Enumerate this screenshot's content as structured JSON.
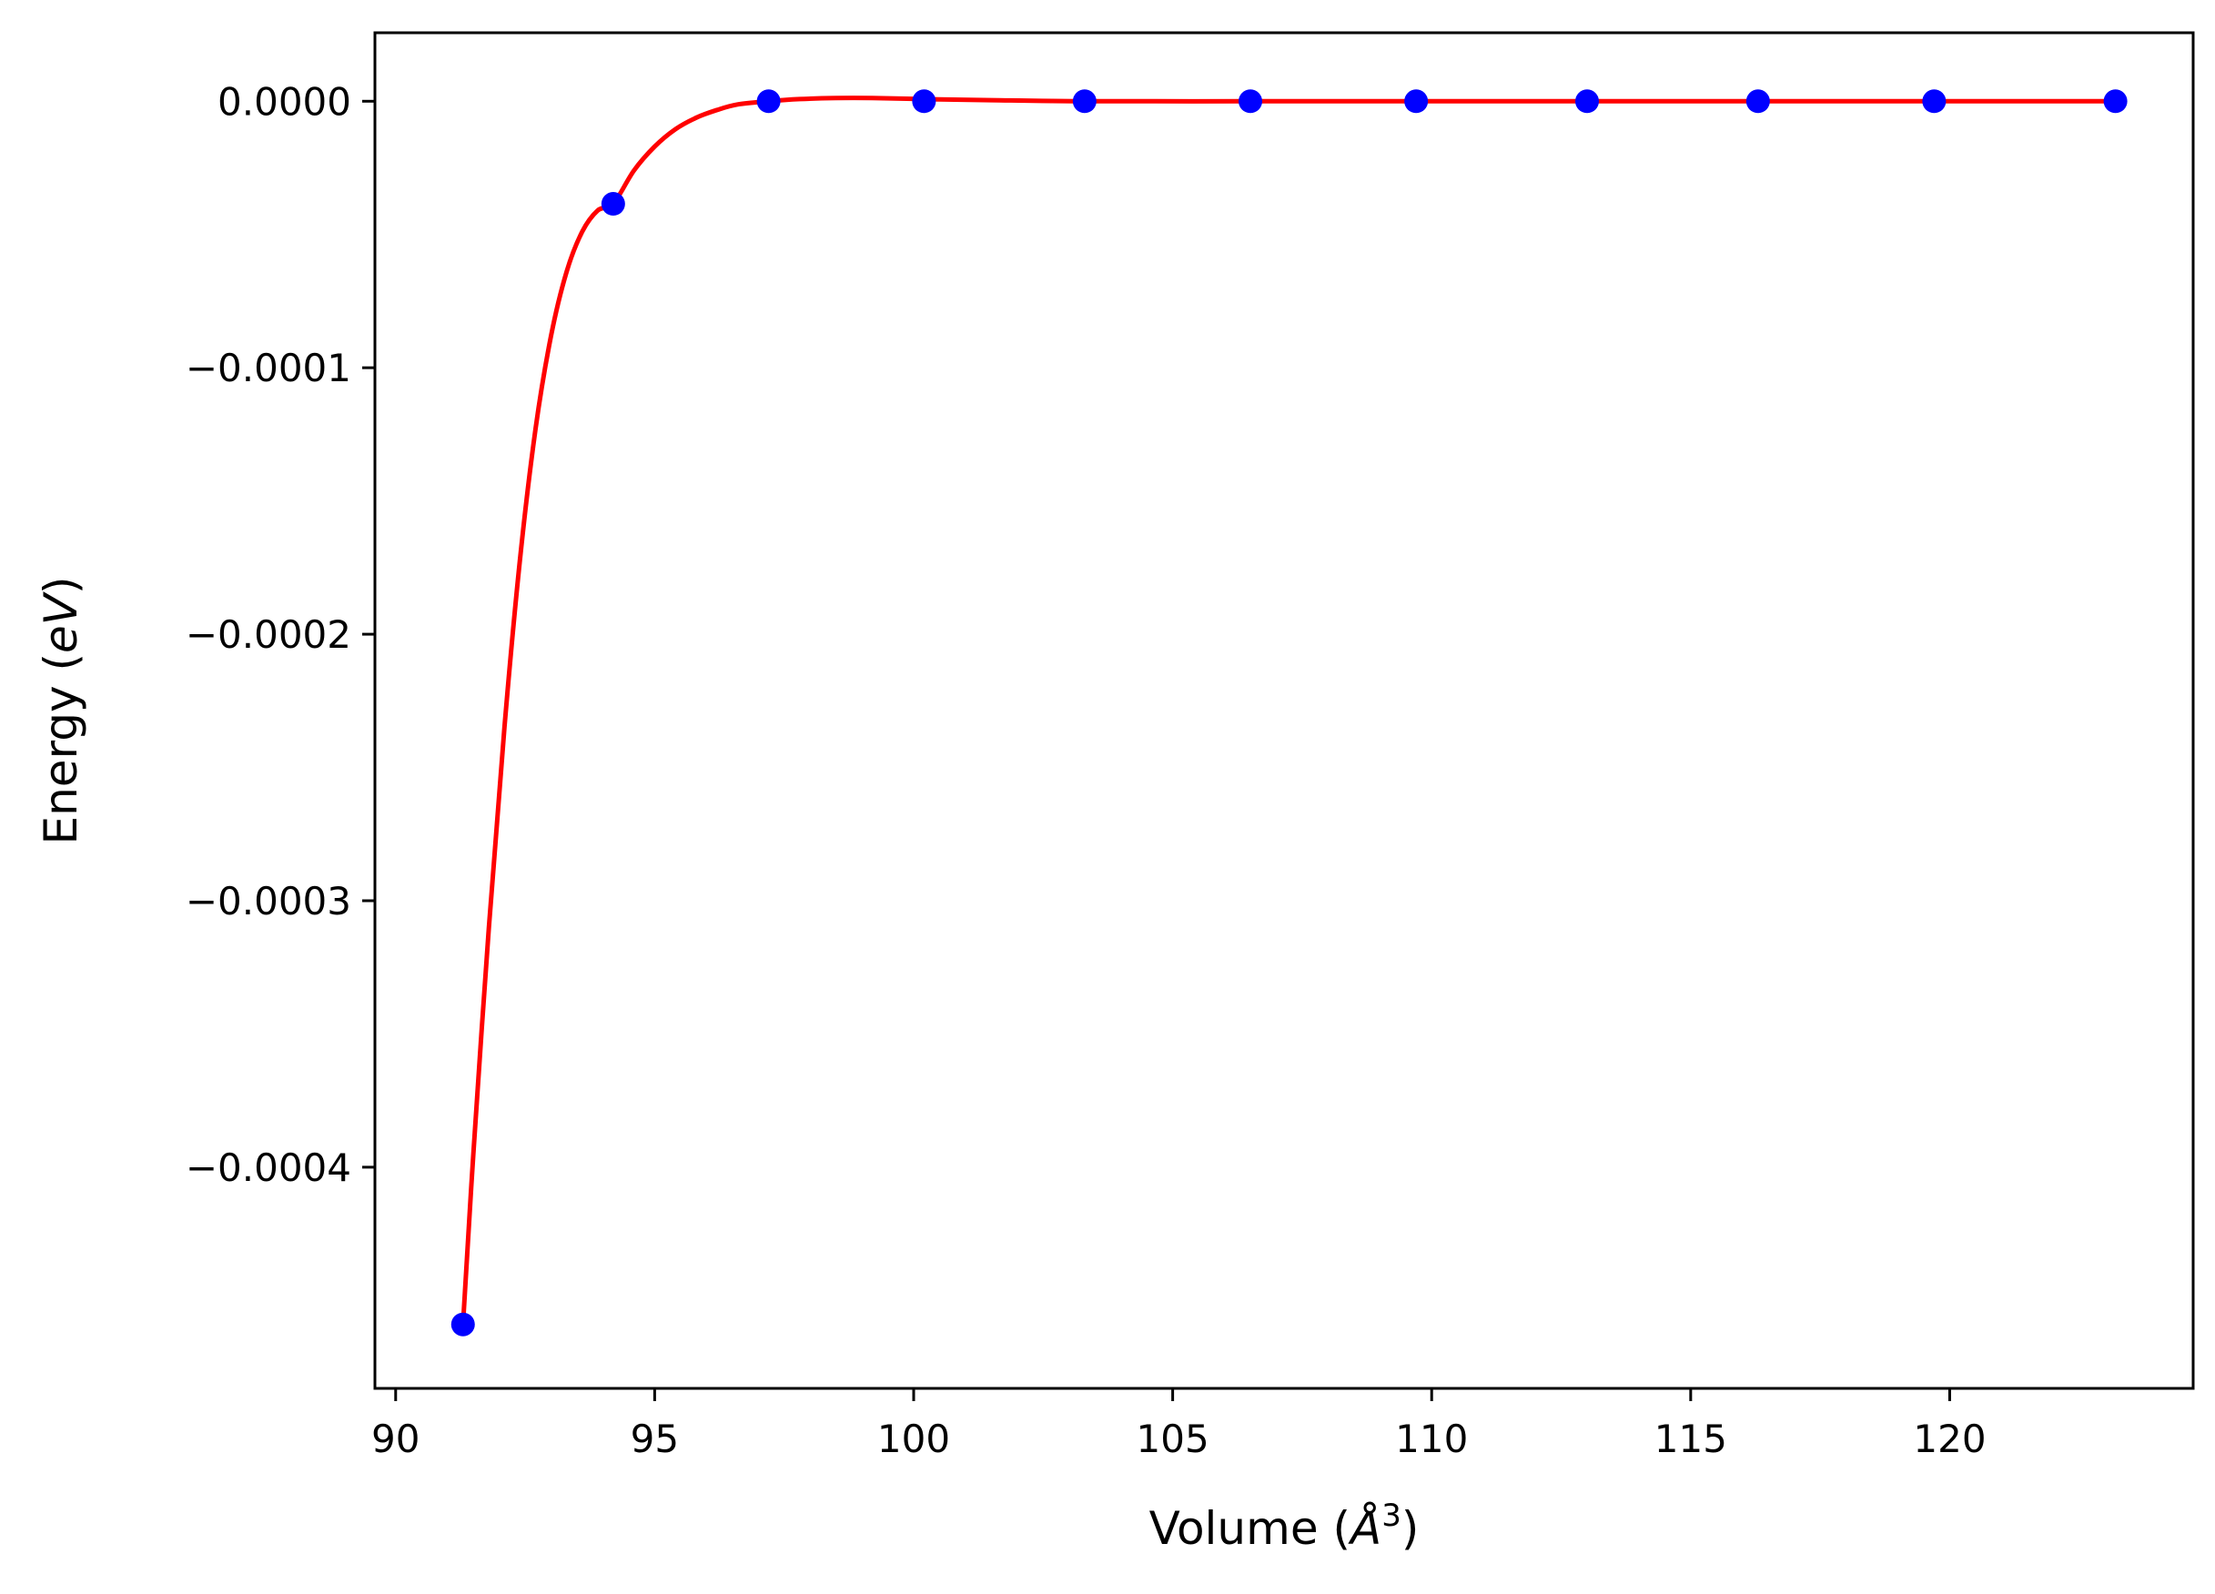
{
  "chart_data": {
    "type": "line",
    "title": "",
    "xlabel": "Volume ($\\AA^3$)",
    "ylabel": "Energy ($eV$)",
    "x_label_parts": {
      "prefix": "Volume (",
      "symbol": "Å",
      "superscript": "3",
      "suffix": ")"
    },
    "y_label_parts": {
      "prefix": "Energy (",
      "symbol": "eV",
      "suffix": ")"
    },
    "xlim": [
      89.6,
      124.7
    ],
    "ylim": [
      -0.000483,
      2.57e-05
    ],
    "x_ticks": [
      90,
      95,
      100,
      105,
      110,
      115,
      120
    ],
    "x_tick_labels": [
      "90",
      "95",
      "100",
      "105",
      "110",
      "115",
      "120"
    ],
    "y_ticks": [
      0.0,
      -0.0001,
      -0.0002,
      -0.0003,
      -0.0004
    ],
    "y_tick_labels": [
      "0.0000",
      "−0.0001",
      "−0.0002",
      "−0.0003",
      "−0.0004"
    ],
    "grid": false,
    "legend": "none",
    "series": [
      {
        "kind": "points",
        "color": "#0000ff",
        "x": [
          91.3,
          94.2,
          97.2,
          100.2,
          103.3,
          106.5,
          109.7,
          113.0,
          116.3,
          119.7,
          123.2
        ],
        "y": [
          -0.000459,
          -3.85e-05,
          0.0,
          0.0,
          0.0,
          0.0,
          0.0,
          0.0,
          0.0,
          0.0,
          0.0
        ]
      },
      {
        "kind": "fit-curve",
        "color": "#ff0000",
        "x": [
          91.3,
          91.5,
          91.8,
          92.1,
          92.4,
          92.7,
          93.0,
          93.3,
          93.6,
          93.9,
          94.2,
          94.6,
          95.0,
          95.4,
          95.8,
          96.2,
          96.6,
          97.2,
          97.8,
          98.5,
          99.2,
          100.2,
          101.5,
          103.3,
          106.5,
          109.7,
          113.0,
          116.3,
          119.7,
          123.2
        ],
        "y": [
          -0.000459,
          -0.000395,
          -0.00031,
          -0.000235,
          -0.000172,
          -0.000123,
          -8.8e-05,
          -6.4e-05,
          -4.9e-05,
          -4.1e-05,
          -3.85e-05,
          -2.6e-05,
          -1.7e-05,
          -1.05e-05,
          -6.2e-06,
          -3.3e-06,
          -1.2e-06,
          0.0,
          8e-07,
          1.2e-06,
          1.2e-06,
          8e-07,
          4e-07,
          0.0,
          0.0,
          0.0,
          0.0,
          0.0,
          0.0,
          0.0
        ]
      }
    ]
  }
}
